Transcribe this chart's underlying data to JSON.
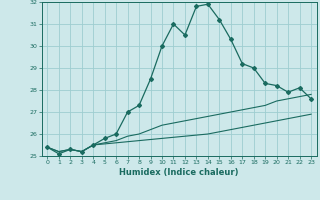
{
  "xlabel": "Humidex (Indice chaleur)",
  "ylabel": "",
  "bg_color": "#cde8ea",
  "grid_color": "#9ecdd0",
  "line_color": "#1a6b60",
  "x_values": [
    0,
    1,
    2,
    3,
    4,
    5,
    6,
    7,
    8,
    9,
    10,
    11,
    12,
    13,
    14,
    15,
    16,
    17,
    18,
    19,
    20,
    21,
    22,
    23
  ],
  "main_y": [
    25.4,
    25.1,
    25.3,
    25.2,
    25.5,
    25.8,
    26.0,
    27.0,
    27.3,
    28.5,
    30.0,
    31.0,
    30.5,
    31.8,
    31.9,
    31.2,
    30.3,
    29.2,
    29.0,
    28.3,
    28.2,
    27.9,
    28.1,
    27.6
  ],
  "line2_y": [
    25.4,
    25.2,
    25.3,
    25.2,
    25.5,
    25.55,
    25.6,
    25.65,
    25.7,
    25.75,
    25.8,
    25.85,
    25.9,
    25.95,
    26.0,
    26.1,
    26.2,
    26.3,
    26.4,
    26.5,
    26.6,
    26.7,
    26.8,
    26.9
  ],
  "line3_y": [
    25.4,
    25.2,
    25.3,
    25.2,
    25.5,
    25.6,
    25.7,
    25.9,
    26.0,
    26.2,
    26.4,
    26.5,
    26.6,
    26.7,
    26.8,
    26.9,
    27.0,
    27.1,
    27.2,
    27.3,
    27.5,
    27.6,
    27.7,
    27.8
  ],
  "ylim": [
    25.0,
    32.0
  ],
  "xlim": [
    -0.5,
    23.5
  ],
  "yticks": [
    25,
    26,
    27,
    28,
    29,
    30,
    31,
    32
  ],
  "xticks": [
    0,
    1,
    2,
    3,
    4,
    5,
    6,
    7,
    8,
    9,
    10,
    11,
    12,
    13,
    14,
    15,
    16,
    17,
    18,
    19,
    20,
    21,
    22,
    23
  ],
  "tick_fontsize": 4.5,
  "xlabel_fontsize": 6.0
}
